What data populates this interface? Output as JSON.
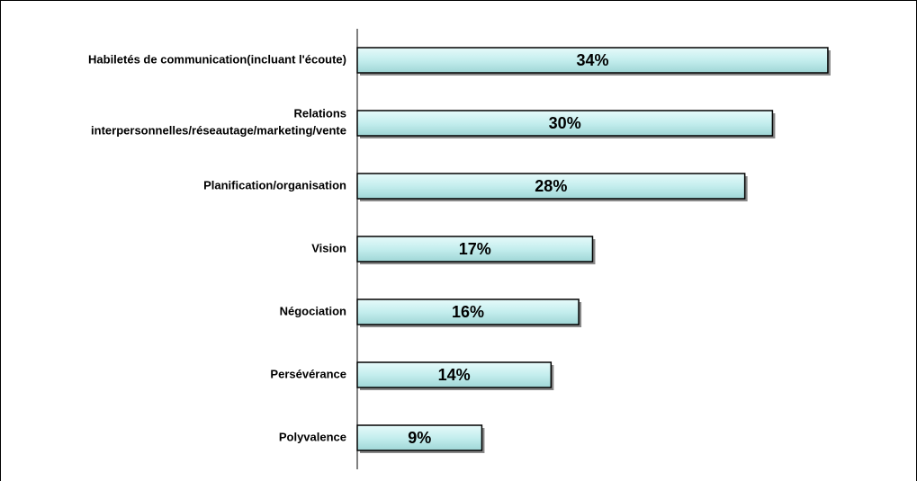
{
  "chart_data": {
    "type": "bar",
    "orientation": "horizontal",
    "categories": [
      "Habiletés de communication(incluant l'écoute)",
      "Relations\ninterpersonnelles/réseautage/marketing/vente",
      "Planification/organisation",
      "Vision",
      "Négociation",
      "Persévérance",
      "Polyvalence"
    ],
    "values": [
      34,
      30,
      28,
      17,
      16,
      14,
      9
    ],
    "value_labels": [
      "34%",
      "30%",
      "28%",
      "17%",
      "16%",
      "14%",
      "9%"
    ],
    "color": "#c4eeee"
  }
}
